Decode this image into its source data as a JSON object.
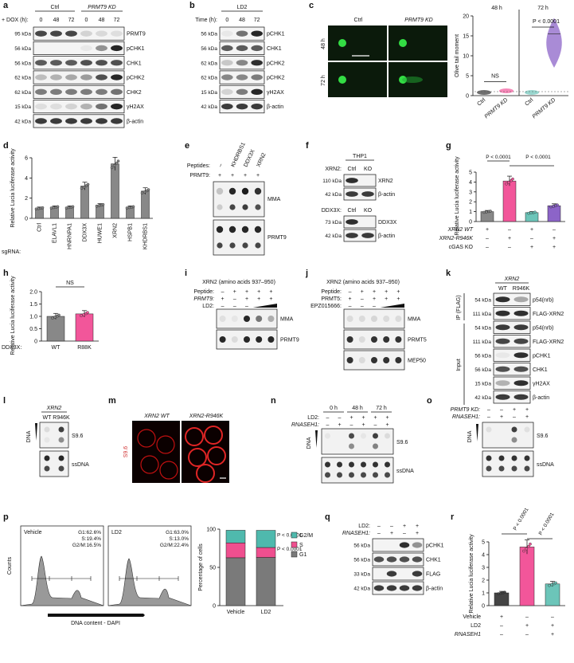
{
  "panels": {
    "a": {
      "letter": "a",
      "dox_label": "+ DOX (h):",
      "groups": [
        "Ctrl",
        "PRMT9 KD"
      ],
      "times": [
        "0",
        "48",
        "72",
        "0",
        "48",
        "72"
      ],
      "rows": [
        {
          "kda": "95 kDa",
          "name": "PRMT9"
        },
        {
          "kda": "56 kDa",
          "name": "pCHK1"
        },
        {
          "kda": "56 kDa",
          "name": "CHK1"
        },
        {
          "kda": "62 kDa",
          "name": "pCHK2"
        },
        {
          "kda": "62 kDa",
          "name": "CHK2"
        },
        {
          "kda": "15 kDa",
          "name": "γH2AX"
        },
        {
          "kda": "42 kDa",
          "name": "β-actin"
        }
      ]
    },
    "b": {
      "letter": "b",
      "group": "LD2",
      "time_label": "Time (h):",
      "times": [
        "0",
        "48",
        "72"
      ],
      "rows": [
        {
          "kda": "56 kDa",
          "name": "pCHK1"
        },
        {
          "kda": "56 kDa",
          "name": "CHK1"
        },
        {
          "kda": "62 kDa",
          "name": "pCHK2"
        },
        {
          "kda": "62 kDa",
          "name": "pCHK2"
        },
        {
          "kda": "15 kDa",
          "name": "γH2AX"
        },
        {
          "kda": "42 kDa",
          "name": "β-actin"
        }
      ]
    },
    "c": {
      "letter": "c",
      "cols": [
        "Ctrl",
        "PRMT9 KD"
      ],
      "rows": [
        "48 h",
        "72 h"
      ],
      "chart_titles": [
        "48 h",
        "72 h"
      ],
      "ylabel": "Olive tail moment",
      "yticks": [
        "0",
        "5",
        "10",
        "15",
        "20"
      ],
      "xcats": [
        "Ctrl",
        "PRMT9 KD",
        "Ctrl",
        "PRMT9 KD"
      ],
      "ns": "NS",
      "p": "P < 0.0001"
    },
    "d": {
      "letter": "d",
      "ylabel": "Relative Lucia luciferase activity",
      "yticks": [
        "0",
        "2",
        "4",
        "6"
      ],
      "xlabel": "sgRNA:",
      "categories": [
        "Ctrl",
        "ELAVL1",
        "HNRNPA1",
        "DDX3X",
        "HUWE1",
        "XRN2",
        "HSPB1",
        "KHDRBS1"
      ]
    },
    "e": {
      "letter": "e",
      "peptides_label": "Peptides:",
      "prmt9_label": "PRMT9:",
      "cols": [
        "–",
        "KHDRBS1",
        "DDX3X",
        "XRN2"
      ],
      "prmt9_signs": [
        "+",
        "+",
        "+",
        "+"
      ],
      "blots": [
        "MMA",
        "PRMT9"
      ]
    },
    "f": {
      "letter": "f",
      "cell": "THP1",
      "xrn2_label": "XRN2:",
      "ddx3x_label": "DDX3X:",
      "cols": [
        "Ctrl",
        "KO"
      ],
      "rows": [
        {
          "kda": "110 kDa",
          "name": "XRN2"
        },
        {
          "kda": "42 kDa",
          "name": "β-actin"
        },
        {
          "kda": "73 kDa",
          "name": "DDX3X"
        },
        {
          "kda": "42 kDa",
          "name": "β-actin"
        }
      ]
    },
    "g": {
      "letter": "g",
      "ylabel": "Relative Lucia luciferase activity",
      "yticks": [
        "0",
        "1",
        "2",
        "3",
        "4",
        "5"
      ],
      "p1": "P < 0.0001",
      "p2": "P < 0.0001",
      "row_labels": [
        "XRN2 WT",
        "XRN2-R946K",
        "cGAS KO"
      ],
      "signs": [
        [
          "+",
          "–",
          "+",
          "–"
        ],
        [
          "–",
          "+",
          "–",
          "+"
        ],
        [
          "–",
          "–",
          "+",
          "+"
        ]
      ]
    },
    "h": {
      "letter": "h",
      "ylabel": "Relative Lucia luciferase activity",
      "yticks": [
        "0",
        "0.5",
        "1.0",
        "1.5",
        "2.0"
      ],
      "ns": "NS",
      "xlabel": "DDX3X:",
      "categories": [
        "WT",
        "R88K"
      ]
    },
    "i": {
      "letter": "i",
      "title": "XRN2 (amino acids 937–950)",
      "peptide_label": "Peptide:",
      "prmt9_label": "PRMT9:",
      "ld2_label": "LD2:",
      "peptide_signs": [
        "–",
        "+",
        "+",
        "+",
        "+"
      ],
      "prmt9_signs": [
        "+",
        "–",
        "+",
        "+",
        "+"
      ],
      "ld2_signs": [
        "–",
        "–",
        "–",
        "",
        ""
      ],
      "blots": [
        "MMA",
        "PRMT9"
      ]
    },
    "j": {
      "letter": "j",
      "title": "XRN2 (amino acids 937–950)",
      "peptide_label": "Peptide:",
      "prmt5_label": "PRMT5:",
      "epz_label": "EPZ015666:",
      "peptide_signs": [
        "–",
        "+",
        "+",
        "+",
        "+"
      ],
      "prmt5_signs": [
        "+",
        "–",
        "+",
        "+",
        "+"
      ],
      "epz_signs": [
        "–",
        "–",
        "–",
        "",
        ""
      ],
      "blots": [
        "MMA",
        "PRMT5",
        "MEP50"
      ]
    },
    "k": {
      "letter": "k",
      "header": "XRN2",
      "cols": [
        "WT",
        "R946K"
      ],
      "ip_label": "IP (FLAG)",
      "input_label": "Input",
      "rows": [
        {
          "kda": "54 kDa",
          "name": "p54(nrb)"
        },
        {
          "kda": "111 kDa",
          "name": "FLAG-XRN2"
        },
        {
          "kda": "54 kDa",
          "name": "p54(nrb)"
        },
        {
          "kda": "111 kDa",
          "name": "FLAG-XRN2"
        },
        {
          "kda": "56 kDa",
          "name": "pCHK1"
        },
        {
          "kda": "56 kDa",
          "name": "CHK1"
        },
        {
          "kda": "15 kDa",
          "name": "γH2AX"
        },
        {
          "kda": "42 kDa",
          "name": "β-actin"
        }
      ]
    },
    "l": {
      "letter": "l",
      "header": "XRN2",
      "cols": [
        "WT",
        "R946K"
      ],
      "dna": "DNA",
      "blots": [
        "S9.6",
        "ssDNA"
      ]
    },
    "m": {
      "letter": "m",
      "cols": [
        "XRN2 WT",
        "XRN2-R946K"
      ],
      "side": "S9.6"
    },
    "n": {
      "letter": "n",
      "times": [
        "0 h",
        "48 h",
        "72 h"
      ],
      "ld2_label": "LD2:",
      "rnase_label": "RNASEH1:",
      "ld2_signs": [
        "–",
        "–",
        "+",
        "+",
        "+",
        "+"
      ],
      "rnase_signs": [
        "–",
        "+",
        "–",
        "+",
        "–",
        "+"
      ],
      "dna": "DNA",
      "blots": [
        "S9.6",
        "ssDNA"
      ]
    },
    "o": {
      "letter": "o",
      "kd_label": "PRMT9 KD:",
      "rnase_label": "RNASEH1:",
      "kd_signs": [
        "–",
        "–",
        "+",
        "+"
      ],
      "rnase_signs": [
        "–",
        "+",
        "–",
        "+"
      ],
      "dna": "DNA",
      "blots": [
        "S9.6",
        "ssDNA"
      ]
    },
    "p": {
      "letter": "p",
      "hist": [
        {
          "name": "Vehicle",
          "stats": [
            "G1:62.6%",
            "S:19.4%",
            "G2/M:16.5%"
          ]
        },
        {
          "name": "LD2",
          "stats": [
            "G1:63.0%",
            "S:13.0%",
            "G2/M:22.4%"
          ]
        }
      ],
      "counts": "Counts",
      "xlabel": "DNA content - DAPI",
      "ylabel": "Percentage of cells",
      "yticks": [
        "0",
        "50",
        "100"
      ],
      "categories": [
        "Vehicle",
        "LD2"
      ],
      "legend": [
        "G2/M",
        "S",
        "G1"
      ],
      "p1": "P < 0.0001",
      "p2": "P < 0.0001"
    },
    "q": {
      "letter": "q",
      "ld2_label": "LD2:",
      "rnase_label": "RNASEH1:",
      "ld2_signs": [
        "–",
        "–",
        "+",
        "+"
      ],
      "rnase_signs": [
        "–",
        "+",
        "–",
        "+"
      ],
      "rows": [
        {
          "kda": "56 kDa",
          "name": "pCHK1"
        },
        {
          "kda": "56 kDa",
          "name": "CHK1"
        },
        {
          "kda": "33 kDa",
          "name": "FLAG"
        },
        {
          "kda": "42 kDa",
          "name": "β-actin"
        }
      ]
    },
    "r": {
      "letter": "r",
      "ylabel": "Relative Lucia luciferase activity",
      "yticks": [
        "0",
        "1",
        "2",
        "3",
        "4",
        "5"
      ],
      "p1": "P < 0.0001",
      "p2": "P < 0.0001",
      "row_labels": [
        "Vehicle",
        "LD2",
        "RNASEH1"
      ],
      "signs": [
        [
          "+",
          "–",
          "–"
        ],
        [
          "–",
          "+",
          "+"
        ],
        [
          "–",
          "–",
          "+"
        ]
      ]
    }
  },
  "colors": {
    "pink": "#f2569a",
    "teal": "#6cc5b9",
    "purple": "#8c64c8",
    "gray": "#888888",
    "s_phase": "#ef4f8f",
    "g2m": "#4fb9ad"
  },
  "chart_data": [
    {
      "type": "scatter",
      "title": "",
      "ylabel": "Olive tail moment",
      "ylim": [
        0,
        20
      ],
      "categories": [
        "Ctrl 48 h",
        "PRMT9 KD 48 h",
        "Ctrl 72 h",
        "PRMT9 KD 72 h"
      ],
      "values": [
        0.8,
        1.2,
        0.8,
        15.5
      ]
    },
    {
      "type": "bar",
      "ylabel": "Relative Lucia luciferase activity",
      "ylim": [
        0,
        6
      ],
      "categories": [
        "Ctrl",
        "ELAVL1",
        "HNRNPA1",
        "DDX3X",
        "HUWE1",
        "XRN2",
        "HSPB1",
        "KHDRBS1"
      ],
      "values": [
        1.0,
        1.1,
        1.1,
        3.2,
        1.3,
        5.4,
        1.1,
        2.7
      ]
    },
    {
      "type": "bar",
      "ylabel": "Relative Lucia luciferase activity",
      "ylim": [
        0,
        5
      ],
      "categories": [
        "WT",
        "R946K",
        "WT cGAS KO",
        "R946K cGAS KO"
      ],
      "values": [
        1.0,
        4.1,
        0.9,
        1.6
      ]
    },
    {
      "type": "bar",
      "ylabel": "Relative Lucia luciferase activity",
      "ylim": [
        0,
        2
      ],
      "categories": [
        "WT",
        "R88K"
      ],
      "values": [
        1.0,
        1.1
      ]
    },
    {
      "type": "bar",
      "ylabel": "Percentage of cells",
      "ylim": [
        0,
        100
      ],
      "categories": [
        "Vehicle",
        "LD2"
      ],
      "series": [
        {
          "name": "G1",
          "values": [
            62.6,
            63.0
          ]
        },
        {
          "name": "S",
          "values": [
            19.4,
            13.0
          ]
        },
        {
          "name": "G2/M",
          "values": [
            16.5,
            22.4
          ]
        }
      ]
    },
    {
      "type": "bar",
      "ylabel": "Relative Lucia luciferase activity",
      "ylim": [
        0,
        5
      ],
      "categories": [
        "Vehicle",
        "LD2",
        "LD2 + RNASEH1"
      ],
      "values": [
        1.0,
        4.6,
        1.7
      ]
    }
  ]
}
